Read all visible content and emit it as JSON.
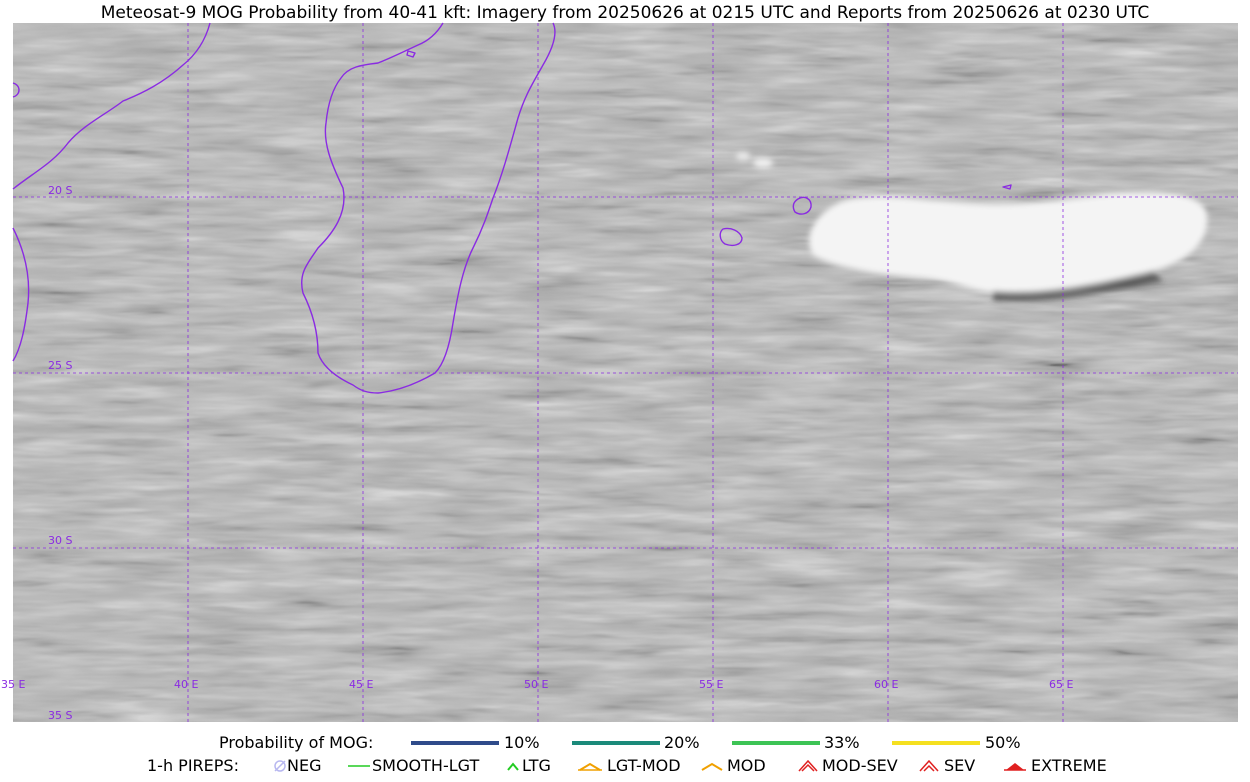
{
  "title": "Meteosat-9 MOG Probability from 40-41 kft: Imagery from 20250626 at 0215 UTC and Reports from 20250626 at 0230 UTC",
  "map": {
    "grid_color": "#8a2be2",
    "coast_color": "#8a2be2",
    "lon_labels": [
      "35 E",
      "40 E",
      "45 E",
      "50 E",
      "55 E",
      "60 E",
      "65 E"
    ],
    "lat_labels": [
      "20 S",
      "25 S",
      "30 S",
      "35 S"
    ]
  },
  "legend": {
    "prob_label": "Probability of MOG:",
    "prob_items": [
      {
        "label": "10%",
        "color": "#2f4b8a"
      },
      {
        "label": "20%",
        "color": "#1b8a7a"
      },
      {
        "label": "33%",
        "color": "#3dc455"
      },
      {
        "label": "50%",
        "color": "#f5e020"
      }
    ],
    "pirep_label": "1-h PIREPS:",
    "pirep_items": [
      {
        "label": "NEG",
        "icon": "neg-icon",
        "color": "#b8b8f0"
      },
      {
        "label": "SMOOTH-LGT",
        "icon": "smooth-lgt-icon",
        "color": "#22cc22"
      },
      {
        "label": "LTG",
        "icon": "ltg-icon",
        "color": "#22cc22"
      },
      {
        "label": "LGT-MOD",
        "icon": "lgt-mod-icon",
        "color": "#f0a000"
      },
      {
        "label": "MOD",
        "icon": "mod-icon",
        "color": "#f0a000"
      },
      {
        "label": "MOD-SEV",
        "icon": "mod-sev-icon",
        "color": "#e02020"
      },
      {
        "label": "SEV",
        "icon": "sev-icon",
        "color": "#e02020"
      },
      {
        "label": "EXTREME",
        "icon": "extreme-icon",
        "color": "#e02020"
      }
    ]
  }
}
